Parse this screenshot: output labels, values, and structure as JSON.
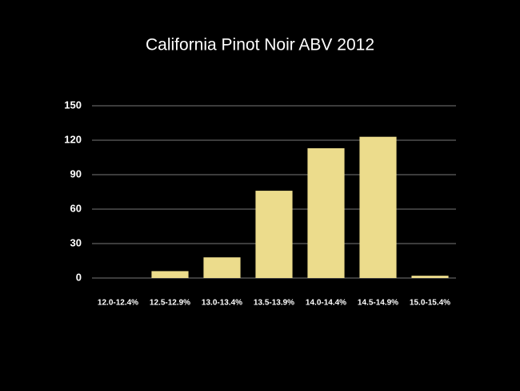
{
  "chart_data": {
    "type": "bar",
    "title": "California Pinot Noir ABV 2012",
    "categories": [
      "12.0-12.4%",
      "12.5-12.9%",
      "13.0-13.4%",
      "13.5-13.9%",
      "14.0-14.4%",
      "14.5-14.9%",
      "15.0-15.4%"
    ],
    "values": [
      0,
      6,
      18,
      76,
      113,
      123,
      2
    ],
    "color": "#ecdc8c",
    "ylim": [
      0,
      150
    ],
    "yticks": [
      0,
      30,
      60,
      90,
      120,
      150
    ],
    "grid": true
  }
}
